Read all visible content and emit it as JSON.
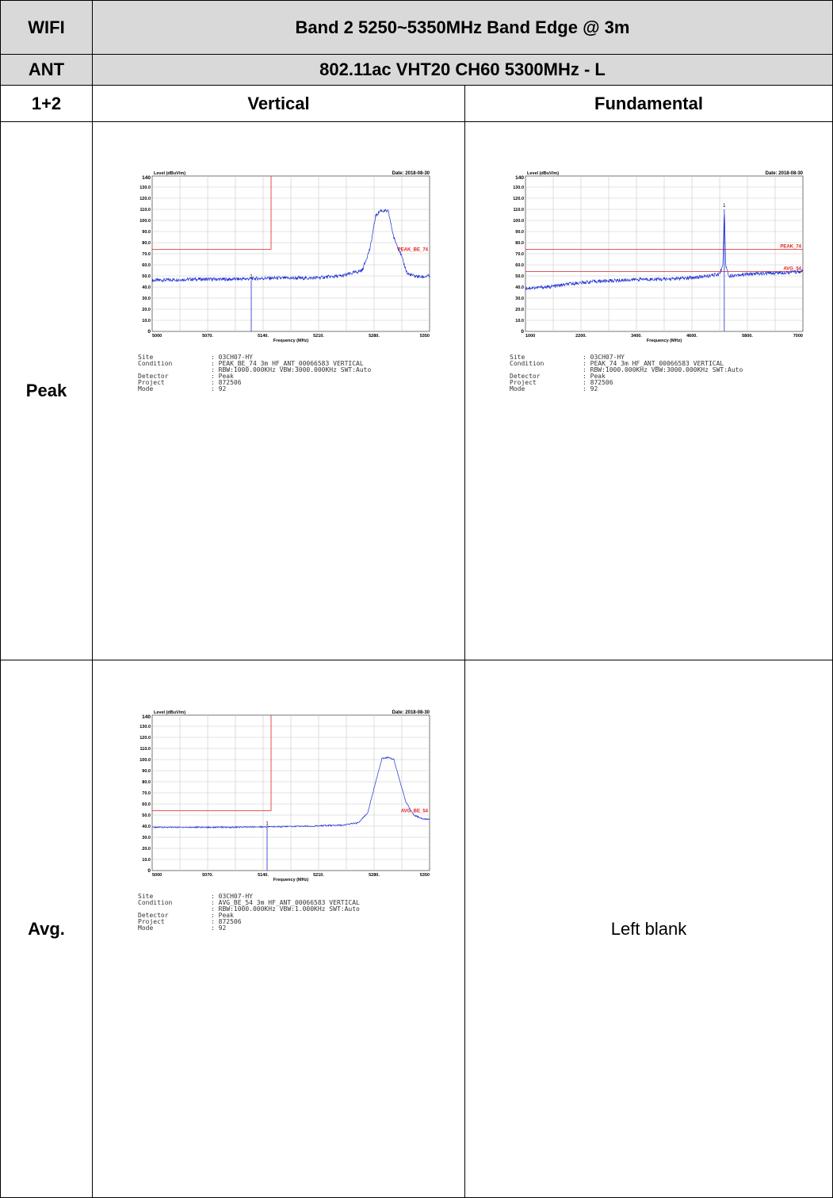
{
  "header": {
    "row1_label": "WIFI",
    "row1_value": "Band 2 5250~5350MHz Band Edge @ 3m",
    "row2_label": "ANT",
    "row2_value": "802.11ac VHT20 CH60 5300MHz - L",
    "row3_label": "1+2",
    "col_vertical": "Vertical",
    "col_fundamental": "Fundamental"
  },
  "rows": {
    "peak_label": "Peak",
    "avg_label": "Avg.",
    "left_blank": "Left blank"
  },
  "chart_data": [
    {
      "id": "peak_vertical",
      "type": "line",
      "ylabel": "Level (dBuV/m)",
      "xlabel": "Frequency (MHz)",
      "date": "Date: 2018-08-30",
      "xlim": [
        5000,
        5350
      ],
      "ylim": [
        0,
        140
      ],
      "xticks": [
        "5000",
        "5070.",
        "5140.",
        "5210.",
        "5280.",
        "5350"
      ],
      "yticks": [
        "0",
        "10.0",
        "20.0",
        "30.0",
        "40.0",
        "50.0",
        "60.0",
        "70.0",
        "80.0",
        "90.0",
        "100.0",
        "110.0",
        "120.0",
        "130.0",
        "140"
      ],
      "limit_label": "PEAK_BE_74",
      "limit_level": 74,
      "limit_edge": 5150,
      "marker": {
        "label": "1",
        "x": 5125,
        "y": 46
      },
      "series": [
        {
          "x": [
            5000,
            5050,
            5100,
            5150,
            5200,
            5240,
            5265,
            5275,
            5282,
            5288,
            5298,
            5305,
            5312,
            5318,
            5322,
            5330,
            5340,
            5350
          ],
          "y": [
            46,
            47,
            47,
            48,
            48,
            50,
            55,
            75,
            104,
            109,
            108,
            84,
            73,
            60,
            52,
            50,
            49,
            50
          ]
        }
      ],
      "grid": true,
      "info": [
        {
          "k": "Site",
          "v": ": 03CH07-HY"
        },
        {
          "k": "Condition",
          "v": ": PEAK_BE_74 3m HF_ANT_00066583 VERTICAL"
        },
        {
          "k": "",
          "v": ": RBW:1000.000KHz VBW:3000.000KHz SWT:Auto"
        },
        {
          "k": "Detector",
          "v": ": Peak"
        },
        {
          "k": "Project",
          "v": ": 872506"
        },
        {
          "k": "Mode",
          "v": ": 92"
        }
      ]
    },
    {
      "id": "peak_fundamental",
      "type": "line",
      "ylabel": "Level (dBuV/m)",
      "xlabel": "Frequency (MHz)",
      "date": "Date: 2018-08-30",
      "xlim": [
        1000,
        7000
      ],
      "ylim": [
        0,
        140
      ],
      "xticks": [
        "1000",
        "2200.",
        "3400.",
        "4600.",
        "5800.",
        "7000"
      ],
      "yticks": [
        "0",
        "10.0",
        "20.0",
        "30.0",
        "40.0",
        "50.0",
        "60.0",
        "70.0",
        "80.0",
        "90.0",
        "100.0",
        "110.0",
        "120.0",
        "130.0",
        "140"
      ],
      "limits": [
        {
          "label": "PEAK_74",
          "level": 74
        },
        {
          "label": "AVG_54",
          "level": 54
        }
      ],
      "marker": {
        "label": "1",
        "x": 5300,
        "y": 110
      },
      "series": [
        {
          "x": [
            1000,
            1500,
            2000,
            2500,
            3000,
            3500,
            4000,
            4500,
            5000,
            5200,
            5270,
            5300,
            5330,
            5400,
            5600,
            6000,
            6500,
            7000
          ],
          "y": [
            39,
            40,
            43,
            45,
            46,
            47,
            47,
            48,
            50,
            52,
            60,
            112,
            60,
            50,
            51,
            52,
            53,
            54
          ]
        }
      ],
      "grid": true,
      "info": [
        {
          "k": "Site",
          "v": ": 03CH07-HY"
        },
        {
          "k": "Condition",
          "v": ": PEAK_74 3m HF_ANT_00066583 VERTICAL"
        },
        {
          "k": "",
          "v": ": RBW:1000.000KHz VBW:3000.000KHz SWT:Auto"
        },
        {
          "k": "Detector",
          "v": ": Peak"
        },
        {
          "k": "Project",
          "v": ": 872506"
        },
        {
          "k": "Mode",
          "v": ": 92"
        }
      ]
    },
    {
      "id": "avg_vertical",
      "type": "line",
      "ylabel": "Level (dBuV/m)",
      "xlabel": "Frequency (MHz)",
      "date": "Date: 2018-08-30",
      "xlim": [
        5000,
        5350
      ],
      "ylim": [
        0,
        140
      ],
      "xticks": [
        "5000",
        "5070.",
        "5140.",
        "5210.",
        "5280.",
        "5350"
      ],
      "yticks": [
        "0",
        "10.0",
        "20.0",
        "30.0",
        "40.0",
        "50.0",
        "60.0",
        "70.0",
        "80.0",
        "90.0",
        "100.0",
        "110.0",
        "120.0",
        "130.0",
        "140"
      ],
      "limit_label": "AVG_BE_54",
      "limit_level": 54,
      "limit_edge": 5150,
      "marker": {
        "label": "1",
        "x": 5145,
        "y": 39
      },
      "series": [
        {
          "x": [
            5000,
            5050,
            5100,
            5150,
            5200,
            5240,
            5260,
            5272,
            5282,
            5290,
            5298,
            5305,
            5312,
            5320,
            5330,
            5340,
            5350
          ],
          "y": [
            39,
            39,
            39,
            39.5,
            40,
            41,
            43,
            52,
            80,
            101,
            102,
            100,
            82,
            62,
            50,
            47,
            46
          ]
        }
      ],
      "grid": true,
      "info": [
        {
          "k": "Site",
          "v": ": 03CH07-HY"
        },
        {
          "k": "Condition",
          "v": ": AVG_BE_54 3m HF_ANT_00066583 VERTICAL"
        },
        {
          "k": "",
          "v": ": RBW:1000.000KHz VBW:1.000KHz SWT:Auto"
        },
        {
          "k": "Detector",
          "v": ": Peak"
        },
        {
          "k": "Project",
          "v": ": 872506"
        },
        {
          "k": "Mode",
          "v": ": 92"
        }
      ]
    }
  ]
}
